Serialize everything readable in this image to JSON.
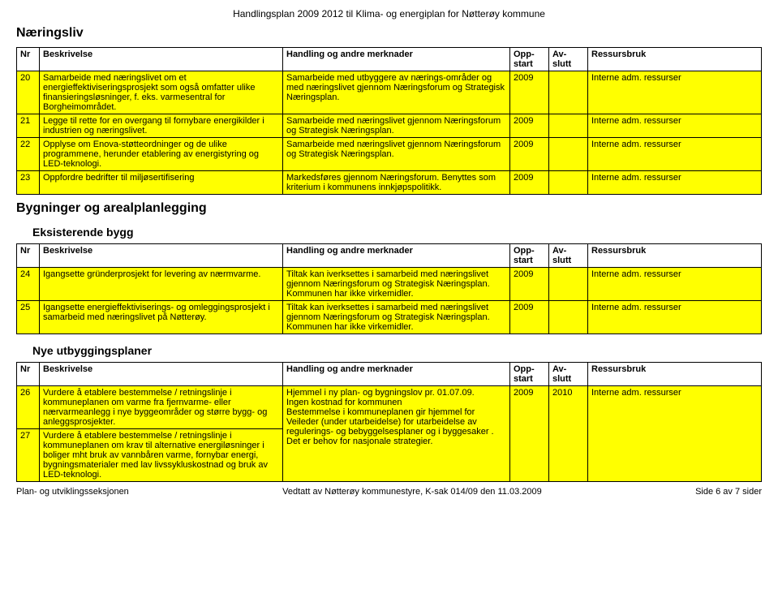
{
  "header": "Handlingsplan 2009 2012 til Klima- og energiplan for Nøtterøy kommune",
  "columns": {
    "nr": "Nr",
    "besk": "Beskrivelse",
    "hand": "Handling og andre merknader",
    "oppstart": "Opp-start",
    "avslutt": "Av-slutt",
    "ressurs": "Ressursbruk"
  },
  "section1": {
    "title": "Næringsliv",
    "rows": [
      {
        "nr": "20",
        "besk": "Samarbeide med næringslivet om et energieffektiviseringsprosjekt som også omfatter ulike finansieringsløsninger, f. eks. varmesentral for Borgheimområdet.",
        "hand": "Samarbeide med utbyggere av nærings-områder og med næringslivet gjennom Næringsforum og Strategisk Næringsplan.",
        "oppstart": "2009",
        "avslutt": "",
        "ressurs": "Interne adm. ressurser"
      },
      {
        "nr": "21",
        "besk": "Legge til rette for en overgang til fornybare energikilder i industrien og næringslivet.",
        "hand": "Samarbeide med næringslivet gjennom Næringsforum og Strategisk Næringsplan.",
        "oppstart": "2009",
        "avslutt": "",
        "ressurs": "Interne adm. ressurser"
      },
      {
        "nr": "22",
        "besk": "Opplyse om Enova-støtteordninger og de ulike programmene, herunder etablering av energistyring og LED-teknologi.",
        "hand": "Samarbeide med næringslivet gjennom Næringsforum og Strategisk Næringsplan.",
        "oppstart": "2009",
        "avslutt": "",
        "ressurs": "Interne adm. ressurser"
      },
      {
        "nr": "23",
        "besk": "Oppfordre bedrifter til miljøsertifisering",
        "hand": "Markedsføres gjennom Næringsforum. Benyttes som kriterium i kommunens innkjøpspolitikk.",
        "oppstart": "2009",
        "avslutt": "",
        "ressurs": "Interne adm. ressurser"
      }
    ]
  },
  "section2": {
    "title": "Bygninger og arealplanlegging",
    "sub1": "Eksisterende bygg",
    "rows1": [
      {
        "nr": "24",
        "besk": "Igangsette gründerprosjekt for levering av nærmvarme.",
        "hand": "Tiltak kan iverksettes i samarbeid med næringslivet gjennom Næringsforum og Strategisk Næringsplan. Kommunen har ikke virkemidler.",
        "oppstart": "2009",
        "avslutt": "",
        "ressurs": "Interne adm. ressurser"
      },
      {
        "nr": "25",
        "besk": "Igangsette energieffektiviserings- og omleggingsprosjekt i samarbeid med næringslivet på Nøtterøy.",
        "hand": "Tiltak kan iverksettes i samarbeid med næringslivet gjennom Næringsforum og Strategisk Næringsplan. Kommunen har ikke virkemidler.",
        "oppstart": "2009",
        "avslutt": "",
        "ressurs": "Interne adm. ressurser"
      }
    ],
    "sub2": "Nye utbyggingsplaner",
    "rows2": [
      {
        "nr": "26",
        "besk": "Vurdere å etablere bestemmelse / retningslinje i kommuneplanen om varme fra fjernvarme- eller nærvarmeanlegg i nye byggeområder og større bygg- og anleggsprosjekter.",
        "hand": "Hjemmel i ny plan- og bygningslov pr. 01.07.09.\nIngen kostnad for kommunen\nBestemmelse i kommuneplanen gir hjemmel for Veileder (under utarbeidelse) for utarbeidelse av regulerings- og bebyggelsesplaner og i byggesaker .\nDet er behov for nasjonale strategier.",
        "oppstart": "2009",
        "avslutt": "2010",
        "ressurs": "Interne adm. ressurser",
        "rowspan_hand": 2,
        "rowspan_start": 2,
        "rowspan_slutt": 2,
        "rowspan_ress": 2
      },
      {
        "nr": "27",
        "besk": "Vurdere å etablere bestemmelse / retningslinje i kommuneplanen om krav til alternative energiløsninger i boliger mht bruk av vannbåren varme, fornybar energi, bygningsmaterialer med lav livssykluskostnad og bruk av LED-teknologi.",
        "skip_rest": true
      }
    ]
  },
  "footer": {
    "left": "Plan- og utviklingsseksjonen",
    "center": "Vedtatt av Nøtterøy kommunestyre, K-sak 014/09 den 11.03.2009",
    "right": "Side 6 av 7 sider"
  }
}
